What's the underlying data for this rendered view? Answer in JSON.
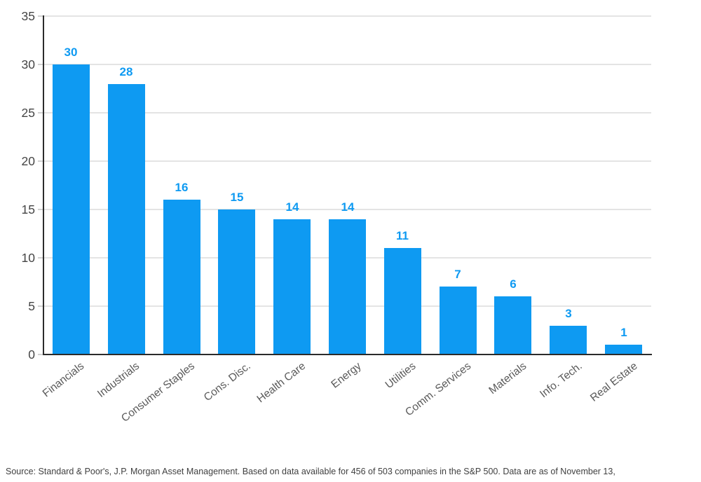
{
  "chart_data": {
    "type": "bar",
    "title": "",
    "xlabel": "",
    "ylabel": "",
    "categories": [
      "Financials",
      "Industrials",
      "Consumer Staples",
      "Cons. Disc.",
      "Health Care",
      "Energy",
      "Utilities",
      "Comm. Services",
      "Materials",
      "Info. Tech.",
      "Real Estate"
    ],
    "values": [
      30,
      28,
      16,
      15,
      14,
      14,
      11,
      7,
      6,
      3,
      1
    ],
    "ylim": [
      0,
      35
    ],
    "yticks": [
      0,
      5,
      10,
      15,
      20,
      25,
      30,
      35
    ],
    "grid": true,
    "legend": "none",
    "bar_color": "#0E9AF2",
    "value_label_color": "#0E9AF2",
    "axis_line_color": "#2b2b2b",
    "gridline_color": "#e4e4e4",
    "tick_label_color": "#454545",
    "category_label_color": "#5a5a5a"
  },
  "source": {
    "text": "Source: Standard & Poor's, J.P. Morgan Asset Management. Based on data available for 456 of 503 companies in the S&P 500. Data are as of November 13,"
  }
}
